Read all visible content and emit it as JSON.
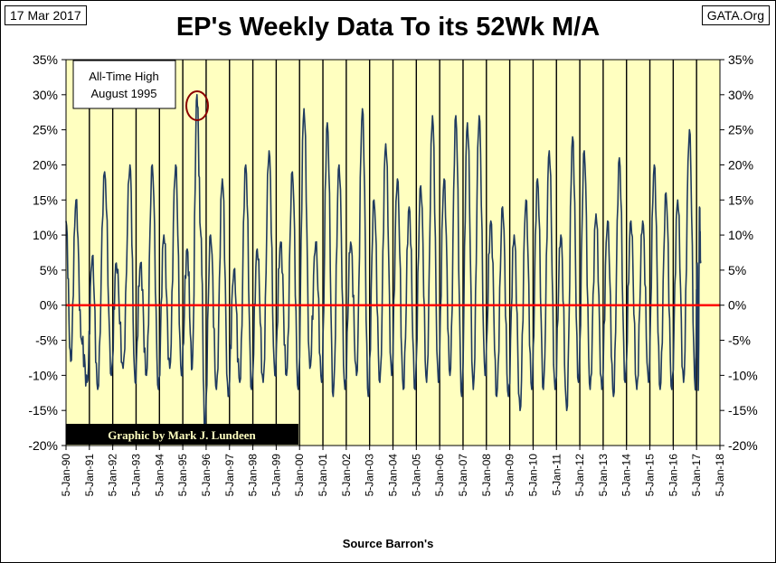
{
  "header": {
    "date": "17 Mar 2017",
    "source_site": "GATA.Org",
    "title": "EP's Weekly Data To its 52Wk M/A"
  },
  "footer": {
    "source": "Source Barron's"
  },
  "annotation": {
    "line1": "All-Time High",
    "line2": "August 1995"
  },
  "credit": "Graphic by Mark J. Lundeen",
  "colors": {
    "plot_bg": "#ffffc0",
    "series": "#1f3a5f",
    "zero_line": "#ff0000",
    "circle": "#8b0000",
    "credit_bg": "#000000",
    "credit_text": "#ffffc0"
  },
  "chart_data": {
    "type": "line",
    "title": "EP's Weekly Data To its 52Wk M/A",
    "xlabel": "",
    "ylabel": "",
    "x_tick_labels": [
      "5-Jan-90",
      "5-Jan-91",
      "5-Jan-92",
      "5-Jan-93",
      "5-Jan-94",
      "5-Jan-95",
      "5-Jan-96",
      "5-Jan-97",
      "5-Jan-98",
      "5-Jan-99",
      "5-Jan-00",
      "5-Jan-01",
      "5-Jan-02",
      "5-Jan-03",
      "5-Jan-04",
      "5-Jan-05",
      "5-Jan-06",
      "5-Jan-07",
      "5-Jan-08",
      "5-Jan-09",
      "5-Jan-10",
      "5-Jan-11",
      "5-Jan-12",
      "5-Jan-13",
      "5-Jan-14",
      "5-Jan-15",
      "5-Jan-16",
      "5-Jan-17",
      "5-Jan-18"
    ],
    "y_tick_labels": [
      "35%",
      "30%",
      "25%",
      "20%",
      "15%",
      "10%",
      "5%",
      "0%",
      "-5%",
      "-10%",
      "-15%",
      "-20%"
    ],
    "xlim": [
      "1990-01-05",
      "2018-01-05"
    ],
    "ylim": [
      -0.2,
      0.35
    ],
    "grid": "vertical lines at each year",
    "zero_line": 0,
    "series": [
      {
        "values": [
          [
            "1990-01-05",
            0.12
          ],
          [
            "1990-03-20",
            -0.08
          ],
          [
            "1990-06-10",
            0.15
          ],
          [
            "1990-09-05",
            -0.05
          ],
          [
            "1990-12-01",
            -0.11
          ],
          [
            "1991-02-20",
            0.07
          ],
          [
            "1991-05-15",
            -0.12
          ],
          [
            "1991-09-01",
            0.19
          ],
          [
            "1991-12-15",
            -0.1
          ],
          [
            "1992-03-01",
            0.06
          ],
          [
            "1992-06-15",
            -0.09
          ],
          [
            "1992-10-01",
            0.2
          ],
          [
            "1992-12-20",
            -0.11
          ],
          [
            "1993-03-15",
            0.06
          ],
          [
            "1993-06-15",
            -0.1
          ],
          [
            "1993-09-15",
            0.2
          ],
          [
            "1993-12-20",
            -0.12
          ],
          [
            "1994-03-15",
            0.1
          ],
          [
            "1994-06-15",
            -0.09
          ],
          [
            "1994-09-15",
            0.2
          ],
          [
            "1994-12-15",
            -0.1
          ],
          [
            "1995-03-15",
            0.08
          ],
          [
            "1995-06-01",
            -0.09
          ],
          [
            "1995-08-15",
            0.3
          ],
          [
            "1995-10-15",
            0.1
          ],
          [
            "1995-12-15",
            -0.18
          ],
          [
            "1996-03-15",
            0.1
          ],
          [
            "1996-06-15",
            -0.12
          ],
          [
            "1996-09-15",
            0.18
          ],
          [
            "1996-12-15",
            -0.13
          ],
          [
            "1997-03-15",
            0.05
          ],
          [
            "1997-06-15",
            -0.11
          ],
          [
            "1997-09-15",
            0.2
          ],
          [
            "1997-12-15",
            -0.12
          ],
          [
            "1998-03-15",
            0.08
          ],
          [
            "1998-06-15",
            -0.11
          ],
          [
            "1998-09-15",
            0.22
          ],
          [
            "1998-12-15",
            -0.1
          ],
          [
            "1999-03-15",
            0.09
          ],
          [
            "1999-06-15",
            -0.1
          ],
          [
            "1999-09-15",
            0.19
          ],
          [
            "1999-12-15",
            -0.12
          ],
          [
            "2000-03-15",
            0.28
          ],
          [
            "2000-06-15",
            -0.09
          ],
          [
            "2000-09-15",
            0.09
          ],
          [
            "2000-12-15",
            -0.11
          ],
          [
            "2001-03-15",
            0.26
          ],
          [
            "2001-06-15",
            -0.13
          ],
          [
            "2001-09-15",
            0.2
          ],
          [
            "2001-12-15",
            -0.12
          ],
          [
            "2002-03-15",
            0.09
          ],
          [
            "2002-06-15",
            -0.1
          ],
          [
            "2002-09-15",
            0.28
          ],
          [
            "2002-12-15",
            -0.13
          ],
          [
            "2003-03-15",
            0.15
          ],
          [
            "2003-06-15",
            -0.11
          ],
          [
            "2003-09-15",
            0.23
          ],
          [
            "2003-12-15",
            -0.1
          ],
          [
            "2004-03-15",
            0.18
          ],
          [
            "2004-06-15",
            -0.12
          ],
          [
            "2004-09-15",
            0.14
          ],
          [
            "2004-12-15",
            -0.12
          ],
          [
            "2005-03-15",
            0.17
          ],
          [
            "2005-06-15",
            -0.11
          ],
          [
            "2005-09-15",
            0.27
          ],
          [
            "2005-12-15",
            -0.11
          ],
          [
            "2006-03-15",
            0.18
          ],
          [
            "2006-06-15",
            -0.1
          ],
          [
            "2006-09-15",
            0.27
          ],
          [
            "2006-12-15",
            -0.13
          ],
          [
            "2007-03-15",
            0.26
          ],
          [
            "2007-06-15",
            -0.12
          ],
          [
            "2007-09-15",
            0.27
          ],
          [
            "2007-12-15",
            -0.1
          ],
          [
            "2008-03-15",
            0.12
          ],
          [
            "2008-06-15",
            -0.13
          ],
          [
            "2008-09-15",
            0.14
          ],
          [
            "2008-12-15",
            -0.13
          ],
          [
            "2009-03-15",
            0.1
          ],
          [
            "2009-06-15",
            -0.15
          ],
          [
            "2009-09-15",
            0.15
          ],
          [
            "2009-12-15",
            -0.12
          ],
          [
            "2010-03-15",
            0.18
          ],
          [
            "2010-06-15",
            -0.12
          ],
          [
            "2010-09-15",
            0.22
          ],
          [
            "2010-12-15",
            -0.12
          ],
          [
            "2011-03-15",
            0.1
          ],
          [
            "2011-06-15",
            -0.15
          ],
          [
            "2011-09-15",
            0.24
          ],
          [
            "2011-12-15",
            -0.11
          ],
          [
            "2012-03-15",
            0.22
          ],
          [
            "2012-06-15",
            -0.12
          ],
          [
            "2012-09-15",
            0.13
          ],
          [
            "2012-12-15",
            -0.12
          ],
          [
            "2013-03-15",
            0.12
          ],
          [
            "2013-06-15",
            -0.13
          ],
          [
            "2013-09-15",
            0.21
          ],
          [
            "2013-12-15",
            -0.11
          ],
          [
            "2014-03-15",
            0.12
          ],
          [
            "2014-06-15",
            -0.12
          ],
          [
            "2014-09-15",
            0.12
          ],
          [
            "2014-12-15",
            -0.11
          ],
          [
            "2015-03-15",
            0.2
          ],
          [
            "2015-06-15",
            -0.12
          ],
          [
            "2015-09-15",
            0.16
          ],
          [
            "2015-12-15",
            -0.12
          ],
          [
            "2016-03-15",
            0.15
          ],
          [
            "2016-06-15",
            -0.11
          ],
          [
            "2016-09-15",
            0.25
          ],
          [
            "2016-12-15",
            -0.12
          ],
          [
            "2017-01-15",
            0.06
          ],
          [
            "2017-02-01",
            -0.12
          ],
          [
            "2017-02-20",
            0.14
          ],
          [
            "2017-03-10",
            0.06
          ]
        ]
      }
    ]
  }
}
